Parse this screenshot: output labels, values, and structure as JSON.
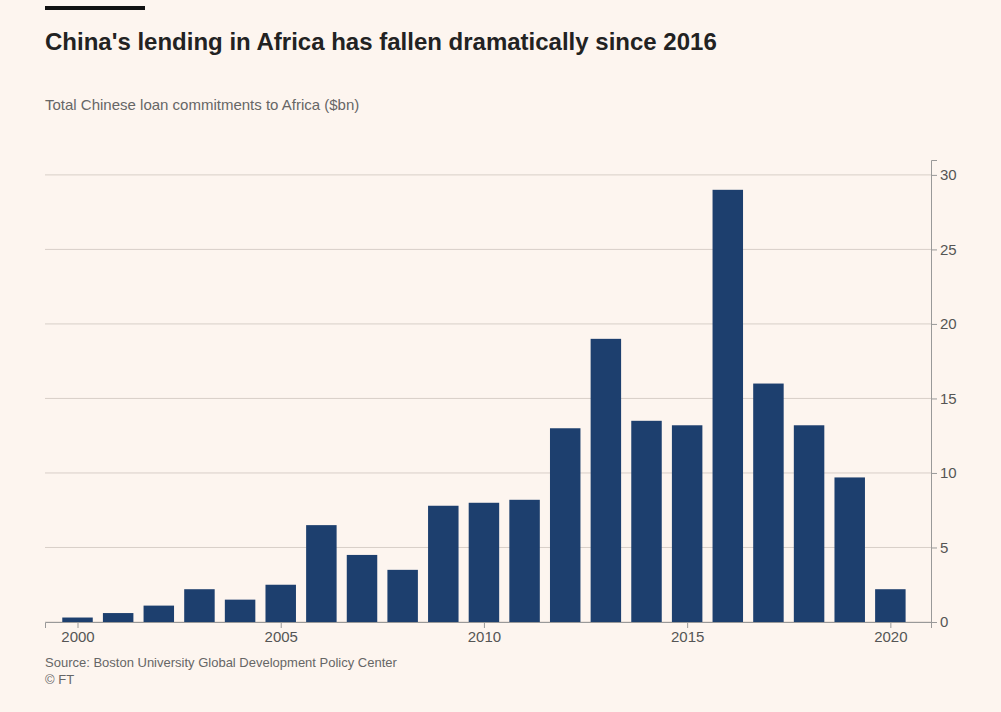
{
  "chart_data": {
    "type": "bar",
    "title": "China's lending in Africa has fallen dramatically since 2016",
    "subtitle": "Total Chinese loan commitments to Africa ($bn)",
    "source": "Source: Boston University Global Development Policy Center\n© FT",
    "x": [
      2000,
      2001,
      2002,
      2003,
      2004,
      2005,
      2006,
      2007,
      2008,
      2009,
      2010,
      2011,
      2012,
      2013,
      2014,
      2015,
      2016,
      2017,
      2018,
      2019,
      2020
    ],
    "values": [
      0.3,
      0.6,
      1.1,
      2.2,
      1.5,
      2.5,
      6.5,
      4.5,
      3.5,
      7.8,
      8.0,
      8.2,
      13.0,
      19.0,
      13.5,
      13.2,
      29.0,
      16.0,
      13.2,
      9.7,
      2.2
    ],
    "color": "#1d3f6e",
    "xlim": [
      1999.2,
      2021.0
    ],
    "xticks": [
      2000,
      2005,
      2010,
      2015,
      2020
    ],
    "ylim": [
      0,
      31
    ],
    "yticks": [
      0,
      5,
      10,
      15,
      20,
      25,
      30
    ],
    "grid": true
  }
}
